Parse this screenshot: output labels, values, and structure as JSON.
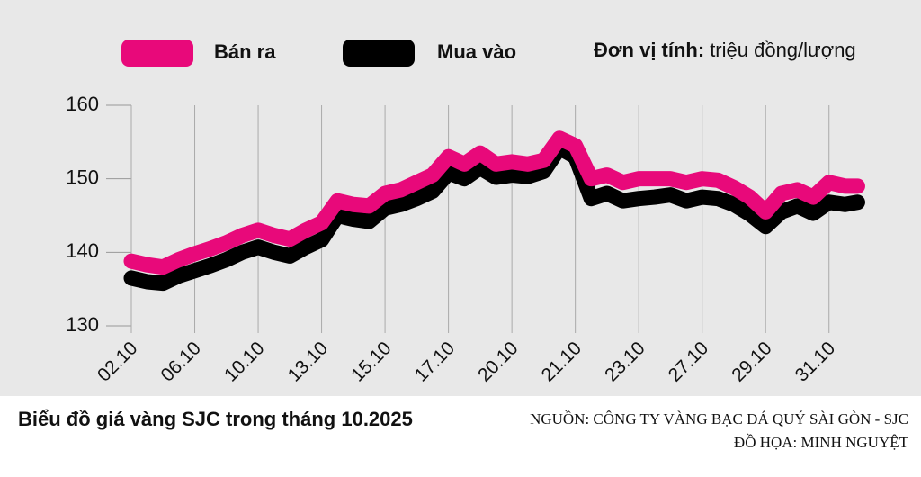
{
  "chart_data": {
    "type": "line",
    "legend_labels": {
      "unit_label": "Đơn vị tính:",
      "unit_value": "triệu đồng/lượng"
    },
    "caption": "Biểu đồ giá vàng SJC trong tháng 10.2025",
    "source": "NGUỒN: CÔNG TY VÀNG BẠC ĐÁ QUÝ SÀI GÒN - SJC",
    "credit": "ĐỒ HỌA: MINH NGUYỆT",
    "x": [
      0,
      0.25,
      0.5,
      0.75,
      1,
      1.25,
      1.5,
      1.75,
      2,
      2.25,
      2.5,
      2.75,
      3,
      3.25,
      3.5,
      3.75,
      4,
      4.25,
      4.5,
      4.75,
      5,
      5.25,
      5.5,
      5.75,
      6,
      6.25,
      6.5,
      6.75,
      7,
      7.25,
      7.5,
      7.75,
      8,
      8.25,
      8.5,
      8.75,
      9,
      9.25,
      9.5,
      9.75,
      10,
      10.25,
      10.5,
      10.75,
      11,
      11.25,
      11.45
    ],
    "series": [
      {
        "name": "Mua vào",
        "color": "#000000",
        "values": [
          136.5,
          136,
          135.8,
          136.8,
          137.5,
          138.2,
          139,
          140,
          140.7,
          140,
          139.5,
          140.7,
          141.7,
          145,
          144.5,
          144.2,
          146,
          146.5,
          147.3,
          148.3,
          150.8,
          150,
          151.5,
          150.2,
          150.5,
          150.3,
          151,
          154.2,
          153,
          147.3,
          148,
          147,
          147.3,
          147.5,
          147.8,
          147,
          147.5,
          147.3,
          146.5,
          145.2,
          143.5,
          145.5,
          146.3,
          145.3,
          146.8,
          146.5,
          146.8
        ]
      },
      {
        "name": "Bán ra",
        "color": "#e8097a",
        "values": [
          138.8,
          138.3,
          138,
          139,
          139.8,
          140.5,
          141.3,
          142.3,
          143,
          142.3,
          141.8,
          143,
          144,
          147,
          146.5,
          146.3,
          148,
          148.5,
          149.5,
          150.5,
          153,
          152,
          153.5,
          152,
          152.3,
          152,
          152.5,
          155.5,
          154.5,
          150,
          150.5,
          149.5,
          150,
          150,
          150,
          149.5,
          150,
          149.8,
          148.8,
          147.5,
          145.5,
          148,
          148.5,
          147.5,
          149.5,
          149,
          149
        ]
      }
    ],
    "xlim": [
      0,
      11.5
    ],
    "xticks": [
      {
        "value": 0,
        "label": "02.10"
      },
      {
        "value": 1,
        "label": "06.10"
      },
      {
        "value": 2,
        "label": "10.10"
      },
      {
        "value": 3,
        "label": "13.10"
      },
      {
        "value": 4,
        "label": "15.10"
      },
      {
        "value": 5,
        "label": "17.10"
      },
      {
        "value": 6,
        "label": "20.10"
      },
      {
        "value": 7,
        "label": "21.10"
      },
      {
        "value": 8,
        "label": "23.10"
      },
      {
        "value": 9,
        "label": "27.10"
      },
      {
        "value": 10,
        "label": "29.10"
      },
      {
        "value": 11,
        "label": "31.10"
      }
    ],
    "ylim": [
      130,
      160
    ],
    "yticks": [
      130,
      140,
      150,
      160
    ],
    "grid": true
  }
}
